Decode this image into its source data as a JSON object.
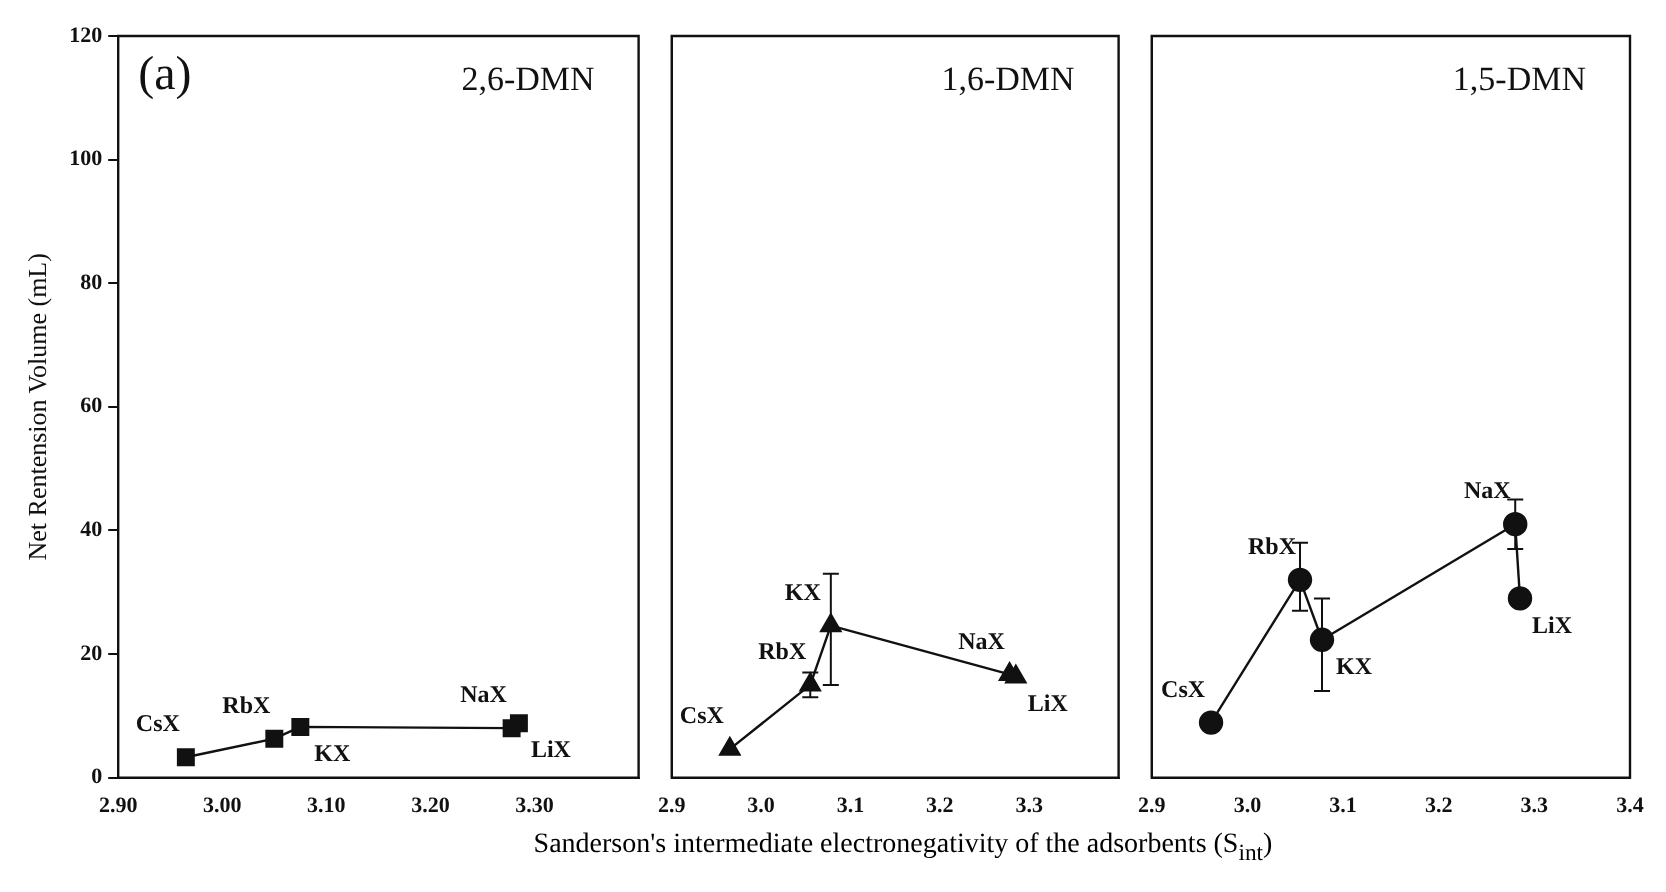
{
  "chart_data": [
    {
      "type": "line",
      "title": "2,6-DMN",
      "ylabel": "Net Rentension Volume (mL)",
      "annotations": [
        "(a)",
        {
          "text": "CsX",
          "x": 2.965,
          "y": 3.3
        },
        {
          "text": "RbX",
          "x": 3.05,
          "y": 6.3
        },
        {
          "text": "KX",
          "x": 3.075,
          "y": 8.2
        },
        {
          "text": "NaX",
          "x": 3.278,
          "y": 8.0
        },
        {
          "text": "LiX",
          "x": 3.285,
          "y": 8.8
        }
      ],
      "series": [
        {
          "color": "#111111",
          "x": [
            2.965,
            3.05,
            3.075,
            3.278,
            3.285
          ],
          "values": [
            3.3,
            6.3,
            8.2,
            8.0,
            8.8
          ]
        }
      ],
      "xlim": [
        2.9,
        3.4
      ],
      "xticks": [
        {
          "value": 2.9,
          "label": "2.90"
        },
        {
          "value": 3.0,
          "label": "3.00"
        },
        {
          "value": 3.1,
          "label": "3.10"
        },
        {
          "value": 3.2,
          "label": "3.20"
        },
        {
          "value": 3.3,
          "label": "3.30"
        }
      ],
      "ylim": [
        0,
        120
      ],
      "yticks": [
        0,
        20,
        40,
        60,
        80,
        100,
        120
      ],
      "grid": false,
      "legend": false,
      "marker": "square",
      "line_style": "solid"
    },
    {
      "type": "line",
      "title": "1,6-DMN",
      "xlabel": "Sanderson's intermediate electronegativity of the adsorbents (S$_{int}$)",
      "annotations": [
        {
          "text": "CsX",
          "x": 2.965,
          "y": 4.6
        },
        {
          "text": "RbX",
          "x": 3.055,
          "y": 15
        },
        {
          "text": "KX",
          "x": 3.078,
          "y": 24.6
        },
        {
          "text": "NaX",
          "x": 3.278,
          "y": 16.7
        },
        {
          "text": "LiX",
          "x": 3.285,
          "y": 16.3
        }
      ],
      "series": [
        {
          "color": "#111111",
          "x": [
            2.965,
            3.055,
            3.078,
            3.278,
            3.285
          ],
          "values": [
            4.6,
            15,
            24.6,
            16.7,
            16.3
          ],
          "errors": [
            null,
            2,
            [
              15,
              33
            ],
            null,
            null
          ]
        }
      ],
      "xlim": [
        2.9,
        3.4
      ],
      "xticks": [
        2.9,
        {
          "value": 3.0,
          "label": "3.0"
        },
        3.1,
        3.2,
        3.3
      ],
      "ylim": [
        0,
        120
      ],
      "yticks": [
        0,
        20,
        40,
        60,
        80,
        100,
        120
      ],
      "tick_labels": "x",
      "grid": false,
      "legend": false,
      "marker": "triangle",
      "line_style": "solid"
    },
    {
      "type": "line",
      "title": "1,5-DMN",
      "annotations": [
        {
          "text": "CsX",
          "x": 2.962,
          "y": 8.9
        },
        {
          "text": "RbX",
          "x": 3.055,
          "y": 32
        },
        {
          "text": "KX",
          "x": 3.078,
          "y": 22.3
        },
        {
          "text": "NaX",
          "x": 3.28,
          "y": 41
        },
        {
          "text": "LiX",
          "x": 3.285,
          "y": 29
        }
      ],
      "series": [
        {
          "color": "#111111",
          "x": [
            2.962,
            3.055,
            3.078,
            3.28,
            3.285
          ],
          "values": [
            8.9,
            32,
            22.3,
            41,
            29
          ],
          "errors": [
            null,
            [
              27,
              38
            ],
            [
              14,
              29
            ],
            [
              37,
              45
            ],
            null
          ]
        }
      ],
      "xlim": [
        2.9,
        3.4
      ],
      "xticks": [
        2.9,
        {
          "value": 3.0,
          "label": "3.0"
        },
        3.1,
        3.2,
        3.3,
        3.4
      ],
      "ylim": [
        0,
        120
      ],
      "yticks": [
        0,
        20,
        40,
        60,
        80,
        100,
        120
      ],
      "tick_labels": "x",
      "grid": false,
      "legend": false,
      "marker": "circle",
      "line_style": "solid"
    }
  ]
}
